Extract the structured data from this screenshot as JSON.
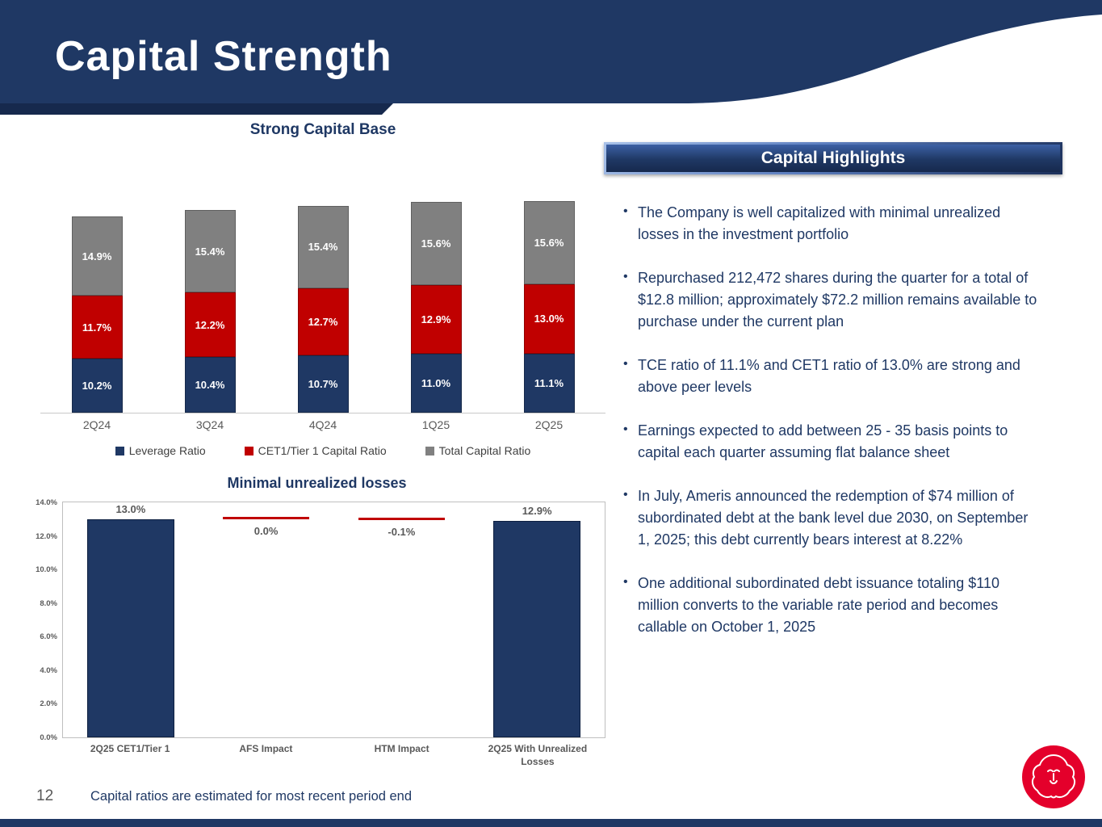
{
  "slide": {
    "title": "Capital Strength",
    "page_number": "12",
    "footnote": "Capital ratios are estimated for most recent period end"
  },
  "colors": {
    "navy": "#1F3864",
    "red": "#C00000",
    "gray": "#808080",
    "logo_red": "#E4002B",
    "label_gray": "#595959"
  },
  "highlights": {
    "title": "Capital Highlights",
    "bullets": [
      "The Company is well capitalized with minimal unrealized losses in the investment portfolio",
      "Repurchased 212,472 shares during the quarter for a total of $12.8 million; approximately $72.2 million remains available to purchase under the current plan",
      "TCE ratio of 11.1% and CET1 ratio of 13.0% are strong and above peer levels",
      "Earnings expected to add between 25 - 35 basis points to capital each quarter assuming flat balance sheet",
      "In July, Ameris announced the redemption of $74 million of subordinated debt at the bank level due 2030, on September 1, 2025; this debt currently bears interest at 8.22%",
      "One additional subordinated debt issuance totaling $110 million converts to the variable rate period and becomes callable on October 1, 2025"
    ]
  },
  "chart_data": [
    {
      "type": "bar",
      "stacked": true,
      "title": "Strong Capital Base",
      "categories": [
        "2Q24",
        "3Q24",
        "4Q24",
        "1Q25",
        "2Q25"
      ],
      "series": [
        {
          "name": "Leverage Ratio",
          "color": "#1F3864",
          "values": [
            10.2,
            10.4,
            10.7,
            11.0,
            11.1
          ]
        },
        {
          "name": "CET1/Tier 1 Capital Ratio",
          "color": "#C00000",
          "values": [
            11.7,
            12.2,
            12.7,
            12.9,
            13.0
          ]
        },
        {
          "name": "Total Capital Ratio",
          "color": "#808080",
          "values": [
            14.9,
            15.4,
            15.4,
            15.6,
            15.6
          ]
        }
      ],
      "value_suffix": "%",
      "legend_position": "bottom",
      "grid": false
    },
    {
      "type": "bar",
      "subtype": "waterfall",
      "title": "Minimal unrealized losses",
      "categories": [
        "2Q25 CET1/Tier 1",
        "AFS Impact",
        "HTM Impact",
        "2Q25 With Unrealized Losses"
      ],
      "bars": [
        {
          "label": "2Q25 CET1/Tier 1",
          "value": 13.0,
          "display": "13.0%",
          "style": "column",
          "color": "#1F3864"
        },
        {
          "label": "AFS Impact",
          "value": 0.0,
          "display": "0.0%",
          "style": "connector",
          "level": 13.0,
          "color": "#C00000"
        },
        {
          "label": "HTM Impact",
          "value": -0.1,
          "display": "-0.1%",
          "style": "connector",
          "level": 12.93,
          "color": "#C00000"
        },
        {
          "label": "2Q25 With Unrealized Losses",
          "value": 12.9,
          "display": "12.9%",
          "style": "column",
          "color": "#1F3864"
        }
      ],
      "ylim": [
        0,
        14
      ],
      "y_ticks": [
        "0.0%",
        "2.0%",
        "4.0%",
        "6.0%",
        "8.0%",
        "10.0%",
        "12.0%",
        "14.0%"
      ],
      "grid": false
    }
  ]
}
